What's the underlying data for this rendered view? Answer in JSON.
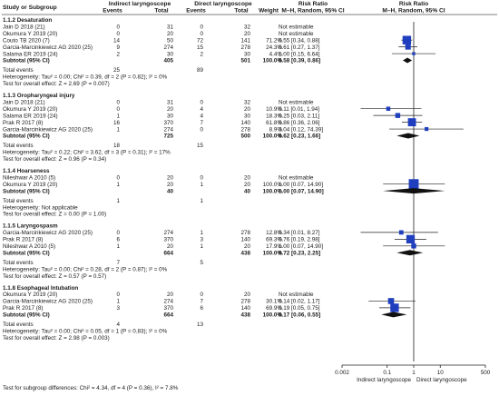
{
  "chart_data": {
    "type": "forest",
    "header": {
      "col_study": "Study or Subgroup",
      "group_indirect": "Indirect laryngoscope",
      "group_direct": "Direct laryngoscope",
      "col_events": "Events",
      "col_total": "Total",
      "col_weight": "Weight",
      "effect_title": "Risk Ratio",
      "effect_method": "M–H, Random, 95% CI",
      "plot_title": "Risk Ratio",
      "plot_method": "M–H, Random, 95% CI"
    },
    "x_axis": {
      "scale": "log",
      "range": [
        0.002,
        500
      ],
      "ticks": [
        0.002,
        0.1,
        1,
        10,
        500
      ],
      "tick_labels": [
        "0.002",
        "0.1",
        "1",
        "10",
        "500"
      ],
      "label_left": "Indirect laryngoscope",
      "label_right": "Direct laryngoscope"
    },
    "subgroups": [
      {
        "title": "1.1.2 Desaturation",
        "studies": [
          {
            "name": "Jain D 2018 (21)",
            "ie": "0",
            "it": "31",
            "de": "0",
            "dt": "32",
            "weight": "",
            "ci": "Not estimable",
            "rr": null,
            "lo": null,
            "hi": null,
            "w": null
          },
          {
            "name": "Okumura Y 2019 (20)",
            "ie": "0",
            "it": "20",
            "de": "0",
            "dt": "20",
            "weight": "",
            "ci": "Not estimable",
            "rr": null,
            "lo": null,
            "hi": null,
            "w": null
          },
          {
            "name": "Couto TB 2020 (7)",
            "ie": "14",
            "it": "50",
            "de": "72",
            "dt": "141",
            "weight": "71.2%",
            "ci": "0.55 [0.34, 0.88]",
            "rr": 0.55,
            "lo": 0.34,
            "hi": 0.88,
            "w": 71.2
          },
          {
            "name": "Garcia-Marcinkiewicz AG 2020 (25)",
            "ie": "9",
            "it": "274",
            "de": "15",
            "dt": "278",
            "weight": "24.3%",
            "ci": "0.61 [0.27, 1.37]",
            "rr": 0.61,
            "lo": 0.27,
            "hi": 1.37,
            "w": 24.3
          },
          {
            "name": "Salama ER 2019 (24)",
            "ie": "2",
            "it": "30",
            "de": "2",
            "dt": "30",
            "weight": "4.4%",
            "ci": "1.00 [0.15, 6.64]",
            "rr": 1.0,
            "lo": 0.15,
            "hi": 6.64,
            "w": 4.4
          }
        ],
        "subtotal": {
          "label": "Subtotal (95% CI)",
          "it": "405",
          "dt": "501",
          "weight": "100.0%",
          "ci": "0.58 [0.39, 0.86]",
          "rr": 0.58,
          "lo": 0.39,
          "hi": 0.86
        },
        "total_events": {
          "label": "Total events",
          "ie": "25",
          "de": "89"
        },
        "heterogeneity": "Heterogeneity: Tau² = 0.00; Chi² = 0.39, df = 2 (P = 0.82); I² = 0%",
        "overall": "Test for overall effect: Z = 2.69 (P = 0.007)"
      },
      {
        "title": "1.1.3 Oropharyngeal injury",
        "studies": [
          {
            "name": "Jain D 2018 (21)",
            "ie": "0",
            "it": "31",
            "de": "0",
            "dt": "32",
            "weight": "",
            "ci": "Not estimable",
            "rr": null,
            "lo": null,
            "hi": null,
            "w": null
          },
          {
            "name": "Okumura Y 2019 (20)",
            "ie": "0",
            "it": "20",
            "de": "4",
            "dt": "20",
            "weight": "10.9%",
            "ci": "0.11 [0.01, 1.94]",
            "rr": 0.11,
            "lo": 0.01,
            "hi": 1.94,
            "w": 10.9
          },
          {
            "name": "Salama ER 2019 (24)",
            "ie": "1",
            "it": "30",
            "de": "4",
            "dt": "30",
            "weight": "18.3%",
            "ci": "0.25 [0.03, 2.11]",
            "rr": 0.25,
            "lo": 0.03,
            "hi": 2.11,
            "w": 18.3
          },
          {
            "name": "Prak R 2017 (8)",
            "ie": "16",
            "it": "370",
            "de": "7",
            "dt": "140",
            "weight": "61.8%",
            "ci": "0.86 [0.36, 2.06]",
            "rr": 0.86,
            "lo": 0.36,
            "hi": 2.06,
            "w": 61.8
          },
          {
            "name": "Garcia-Marcinkiewicz AG 2020 (25)",
            "ie": "1",
            "it": "274",
            "de": "0",
            "dt": "278",
            "weight": "8.9%",
            "ci": "3.04 [0.12, 74.39]",
            "rr": 3.04,
            "lo": 0.12,
            "hi": 74.39,
            "w": 8.9
          }
        ],
        "subtotal": {
          "label": "Subtotal (95% CI)",
          "it": "725",
          "dt": "500",
          "weight": "100.0%",
          "ci": "0.62 [0.23, 1.66]",
          "rr": 0.62,
          "lo": 0.23,
          "hi": 1.66
        },
        "total_events": {
          "label": "Total events",
          "ie": "18",
          "de": "15"
        },
        "heterogeneity": "Heterogeneity: Tau² = 0.22; Chi² = 3.62, df = 3 (P = 0.31); I² = 17%",
        "overall": "Test for overall effect: Z = 0.96 (P = 0.34)"
      },
      {
        "title": "1.1.4 Hoarseness",
        "studies": [
          {
            "name": "Nileshwar A 2010 (5)",
            "ie": "0",
            "it": "20",
            "de": "0",
            "dt": "20",
            "weight": "",
            "ci": "Not estimable",
            "rr": null,
            "lo": null,
            "hi": null,
            "w": null
          },
          {
            "name": "Okumura Y 2019 (20)",
            "ie": "1",
            "it": "20",
            "de": "1",
            "dt": "20",
            "weight": "100.0%",
            "ci": "1.00 [0.07, 14.90]",
            "rr": 1.0,
            "lo": 0.07,
            "hi": 14.9,
            "w": 100
          }
        ],
        "subtotal": {
          "label": "Subtotal (95% CI)",
          "it": "40",
          "dt": "40",
          "weight": "100.0%",
          "ci": "1.00 [0.07, 14.90]",
          "rr": 1.0,
          "lo": 0.07,
          "hi": 14.9
        },
        "total_events": {
          "label": "Total events",
          "ie": "1",
          "de": "1"
        },
        "heterogeneity": "Heterogeneity: Not applicable",
        "overall": "Test for overall effect: Z = 0.00 (P = 1.00)"
      },
      {
        "title": "1.1.5 Laryngospasm",
        "studies": [
          {
            "name": "Garcia-Marcinkiewicz AG 2020 (25)",
            "ie": "0",
            "it": "274",
            "de": "1",
            "dt": "278",
            "weight": "12.8%",
            "ci": "0.34 [0.01, 8.27]",
            "rr": 0.34,
            "lo": 0.01,
            "hi": 8.27,
            "w": 12.8
          },
          {
            "name": "Prak R 2017 (8)",
            "ie": "6",
            "it": "370",
            "de": "3",
            "dt": "140",
            "weight": "69.3%",
            "ci": "0.76 [0.19, 2.98]",
            "rr": 0.76,
            "lo": 0.19,
            "hi": 2.98,
            "w": 69.3
          },
          {
            "name": "Nileshwar A 2010 (5)",
            "ie": "1",
            "it": "20",
            "de": "1",
            "dt": "20",
            "weight": "17.9%",
            "ci": "1.00 [0.07, 14.90]",
            "rr": 1.0,
            "lo": 0.07,
            "hi": 14.9,
            "w": 17.9
          }
        ],
        "subtotal": {
          "label": "Subtotal (95% CI)",
          "it": "664",
          "dt": "438",
          "weight": "100.0%",
          "ci": "0.72 [0.23, 2.25]",
          "rr": 0.72,
          "lo": 0.23,
          "hi": 2.25
        },
        "total_events": {
          "label": "Total events",
          "ie": "7",
          "de": "5"
        },
        "heterogeneity": "Heterogeneity: Tau² = 0.00; Chi² = 0.28, df = 2 (P = 0.87); I² = 0%",
        "overall": "Test for overall effect: Z = 0.57 (P = 0.57)"
      },
      {
        "title": "1.1.8 Esophageal Intubation",
        "studies": [
          {
            "name": "Okumura Y 2019 (20)",
            "ie": "0",
            "it": "20",
            "de": "0",
            "dt": "20",
            "weight": "",
            "ci": "Not estimable",
            "rr": null,
            "lo": null,
            "hi": null,
            "w": null
          },
          {
            "name": "Garcia-Marcinkiewicz AG 2020 (25)",
            "ie": "1",
            "it": "274",
            "de": "7",
            "dt": "278",
            "weight": "30.1%",
            "ci": "0.14 [0.02, 1.17]",
            "rr": 0.14,
            "lo": 0.02,
            "hi": 1.17,
            "w": 30.1
          },
          {
            "name": "Prak R 2017 (8)",
            "ie": "3",
            "it": "370",
            "de": "6",
            "dt": "140",
            "weight": "69.9%",
            "ci": "0.19 [0.05, 0.75]",
            "rr": 0.19,
            "lo": 0.05,
            "hi": 0.75,
            "w": 69.9
          }
        ],
        "subtotal": {
          "label": "Subtotal (95% CI)",
          "it": "664",
          "dt": "438",
          "weight": "100.0%",
          "ci": "0.17 [0.06, 0.55]",
          "rr": 0.17,
          "lo": 0.06,
          "hi": 0.55
        },
        "total_events": {
          "label": "Total events",
          "ie": "4",
          "de": "13"
        },
        "heterogeneity": "Heterogeneity: Tau² = 0.00; Chi² = 0.05, df = 1 (P = 0.83); I² = 0%",
        "overall": "Test for overall effect: Z = 2.98 (P = 0.003)"
      }
    ],
    "footer": "Test for subgroup differences: Chi² = 4.34, df = 4 (P = 0.36), I² = 7.8%",
    "colors": {
      "marker": "#1f3fbf",
      "diamond": "#111111",
      "line": "#222222",
      "header_line": "#555555"
    }
  }
}
